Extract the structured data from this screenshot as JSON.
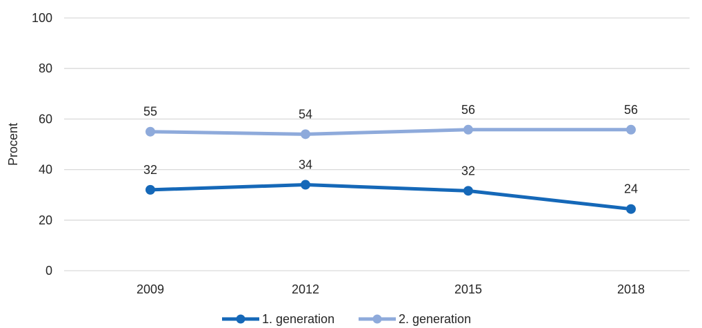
{
  "chart_data": {
    "type": "line",
    "categories": [
      "2009",
      "2012",
      "2015",
      "2018"
    ],
    "series": [
      {
        "name": "1. generation",
        "values": [
          32,
          34,
          32,
          24
        ],
        "labels": [
          "32",
          "34",
          "32",
          "24"
        ],
        "plot_values": [
          32,
          34,
          31.6,
          24.4
        ],
        "color": "#1568b8"
      },
      {
        "name": "2. generation",
        "values": [
          55,
          54,
          56,
          56
        ],
        "labels": [
          "55",
          "54",
          "56",
          "56"
        ],
        "plot_values": [
          55,
          54,
          55.8,
          55.8
        ],
        "color": "#8eaadb"
      }
    ],
    "title": "",
    "xlabel": "",
    "ylabel": "Procent",
    "ylim": [
      0,
      100
    ],
    "yticks": [
      "0",
      "20",
      "40",
      "60",
      "80",
      "100"
    ],
    "grid": true,
    "legend": "bottom"
  },
  "colors": {
    "grid": "#d9d9d9",
    "text": "#262626"
  }
}
